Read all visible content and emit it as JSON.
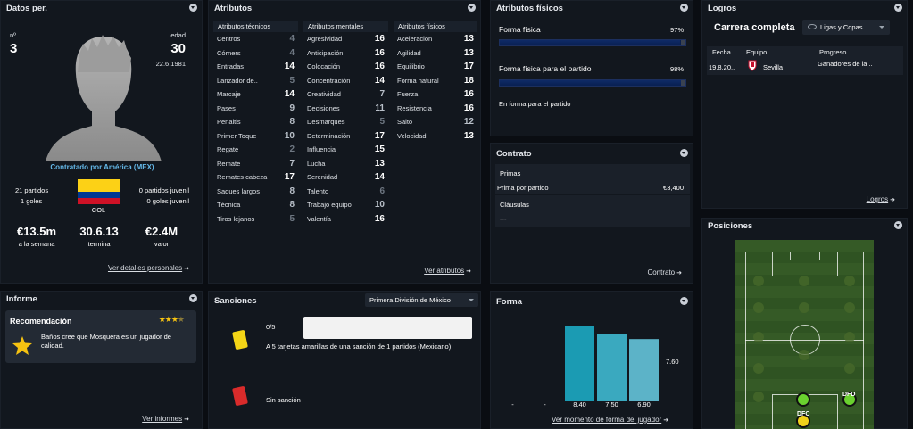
{
  "personal": {
    "title": "Datos per.",
    "number_label": "nº",
    "number": "3",
    "age_label": "edad",
    "age": "30",
    "dob": "22.6.1981",
    "contract_text": "Contratado por América (MEX)",
    "matches": "21 partidos",
    "goals": "1 goles",
    "youth_matches": "0 partidos juvenil",
    "youth_goals": "0 goles juvenil",
    "nation": "COL",
    "wage": "€13.5m",
    "wage_label": "a la semana",
    "expires": "30.6.13",
    "expires_label": "termina",
    "value": "€2.4M",
    "value_label": "valor",
    "link": "Ver detalles personales"
  },
  "attributes": {
    "title": "Atributos",
    "technical_head": "Atributos técnicos",
    "mental_head": "Atributos mentales",
    "physical_head": "Atributos físicos",
    "technical": [
      {
        "name": "Centros",
        "value": "4"
      },
      {
        "name": "Córners",
        "value": "4"
      },
      {
        "name": "Entradas",
        "value": "14"
      },
      {
        "name": "Lanzador de..",
        "value": "5"
      },
      {
        "name": "Marcaje",
        "value": "14"
      },
      {
        "name": "Pases",
        "value": "9"
      },
      {
        "name": "Penaltis",
        "value": "8"
      },
      {
        "name": "Primer Toque",
        "value": "10"
      },
      {
        "name": "Regate",
        "value": "2"
      },
      {
        "name": "Remate",
        "value": "7"
      },
      {
        "name": "Remates cabeza",
        "value": "17"
      },
      {
        "name": "Saques largos",
        "value": "8"
      },
      {
        "name": "Técnica",
        "value": "8"
      },
      {
        "name": "Tiros lejanos",
        "value": "5"
      }
    ],
    "mental": [
      {
        "name": "Agresividad",
        "value": "16"
      },
      {
        "name": "Anticipación",
        "value": "16"
      },
      {
        "name": "Colocación",
        "value": "16"
      },
      {
        "name": "Concentración",
        "value": "14"
      },
      {
        "name": "Creatividad",
        "value": "7"
      },
      {
        "name": "Decisiones",
        "value": "11"
      },
      {
        "name": "Desmarques",
        "value": "5"
      },
      {
        "name": "Determinación",
        "value": "17"
      },
      {
        "name": "Influencia",
        "value": "15"
      },
      {
        "name": "Lucha",
        "value": "13"
      },
      {
        "name": "Serenidad",
        "value": "14"
      },
      {
        "name": "Talento",
        "value": "6"
      },
      {
        "name": "Trabajo equipo",
        "value": "10"
      },
      {
        "name": "Valentía",
        "value": "16"
      }
    ],
    "physical": [
      {
        "name": "Aceleración",
        "value": "13"
      },
      {
        "name": "Agilidad",
        "value": "13"
      },
      {
        "name": "Equilibrio",
        "value": "17"
      },
      {
        "name": "Forma natural",
        "value": "18"
      },
      {
        "name": "Fuerza",
        "value": "16"
      },
      {
        "name": "Resistencia",
        "value": "16"
      },
      {
        "name": "Salto",
        "value": "12"
      },
      {
        "name": "Velocidad",
        "value": "13"
      }
    ],
    "link": "Ver atributos"
  },
  "physical_panel": {
    "title": "Atributos físicos",
    "fitness_label": "Forma física",
    "fitness_value": "97%",
    "fitness_fraction": 0.97,
    "match_fitness_label": "Forma física para el partido",
    "match_fitness_value": "98%",
    "match_fitness_fraction": 0.98,
    "status": "En forma para el partido"
  },
  "contract": {
    "title": "Contrato",
    "bonuses_label": "Primas",
    "bonus_name": "Prima por partido",
    "bonus_value": "€3,400",
    "clauses_label": "Cláusulas",
    "clauses_value": "---",
    "link": "Contrato"
  },
  "achievements": {
    "title": "Logros",
    "tab": "Carrera completa",
    "filter": "Ligas y Copas",
    "col_date": "Fecha",
    "col_team": "Equipo",
    "col_progress": "Progreso",
    "row_date": "19.8.20..",
    "row_team": "Sevilla",
    "row_progress": "Ganadores de la ..",
    "link": "Logros"
  },
  "positions": {
    "title": "Posiciones",
    "pos_1": "DFD",
    "pos_2": "DFC"
  },
  "report": {
    "title": "Informe",
    "recommend_title": "Recomendación",
    "stars": 3.5,
    "recommend_text": "Baños cree que Mosquera es un jugador de calidad.",
    "link": "Ver informes"
  },
  "sanctions": {
    "title": "Sanciones",
    "competition": "Primera División de México",
    "yellow_count": "0/5",
    "yellow_text": "A 5 tarjetas amarillas de una sanción de 1 partidos (Mexicano)",
    "red_text": "Sin sanción"
  },
  "form": {
    "title": "Forma",
    "average": "7.60",
    "link": "Ver momento de forma del jugador",
    "chart_data": {
      "type": "bar",
      "categories": [
        "1",
        "2",
        "3",
        "4",
        "5"
      ],
      "labels": [
        "-",
        "-",
        "8.40",
        "7.50",
        "6.90"
      ],
      "values": [
        null,
        null,
        8.4,
        7.5,
        6.9
      ],
      "average": 7.6,
      "ylim": [
        0,
        10
      ]
    }
  },
  "colors": {
    "accent_link": "#64b8e8",
    "fitness_bar": "#0a1f4d",
    "form_bar_1": "#1b9bb3",
    "form_bar_2": "#3aa9bf",
    "form_bar_3": "#5cb3c8",
    "pitch": "#355a26",
    "star": "#f5c211"
  }
}
